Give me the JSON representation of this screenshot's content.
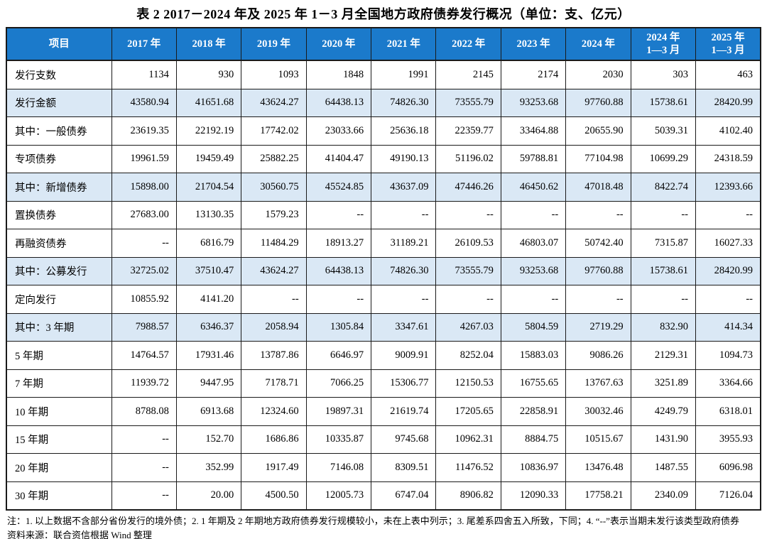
{
  "title": "表 2  2017－2024 年及 2025 年 1－3 月全国地方政府债券发行概况（单位：支、亿元）",
  "table": {
    "columns": [
      "项目",
      "2017 年",
      "2018 年",
      "2019 年",
      "2020 年",
      "2021 年",
      "2022 年",
      "2023 年",
      "2024 年",
      "2024 年\n1—3 月",
      "2025 年\n1—3 月"
    ],
    "rows": [
      {
        "label": "发行支数",
        "highlight": false,
        "values": [
          "1134",
          "930",
          "1093",
          "1848",
          "1991",
          "2145",
          "2174",
          "2030",
          "303",
          "463"
        ]
      },
      {
        "label": "发行金额",
        "highlight": true,
        "values": [
          "43580.94",
          "41651.68",
          "43624.27",
          "64438.13",
          "74826.30",
          "73555.79",
          "93253.68",
          "97760.88",
          "15738.61",
          "28420.99"
        ]
      },
      {
        "label": "其中：一般债券",
        "highlight": false,
        "values": [
          "23619.35",
          "22192.19",
          "17742.02",
          "23033.66",
          "25636.18",
          "22359.77",
          "33464.88",
          "20655.90",
          "5039.31",
          "4102.40"
        ]
      },
      {
        "label": "专项债券",
        "highlight": false,
        "values": [
          "19961.59",
          "19459.49",
          "25882.25",
          "41404.47",
          "49190.13",
          "51196.02",
          "59788.81",
          "77104.98",
          "10699.29",
          "24318.59"
        ]
      },
      {
        "label": "其中：新增债券",
        "highlight": true,
        "values": [
          "15898.00",
          "21704.54",
          "30560.75",
          "45524.85",
          "43637.09",
          "47446.26",
          "46450.62",
          "47018.48",
          "8422.74",
          "12393.66"
        ]
      },
      {
        "label": "置换债券",
        "highlight": false,
        "values": [
          "27683.00",
          "13130.35",
          "1579.23",
          "--",
          "--",
          "--",
          "--",
          "--",
          "--",
          "--"
        ]
      },
      {
        "label": "再融资债券",
        "highlight": false,
        "values": [
          "--",
          "6816.79",
          "11484.29",
          "18913.27",
          "31189.21",
          "26109.53",
          "46803.07",
          "50742.40",
          "7315.87",
          "16027.33"
        ]
      },
      {
        "label": "其中：公募发行",
        "highlight": true,
        "values": [
          "32725.02",
          "37510.47",
          "43624.27",
          "64438.13",
          "74826.30",
          "73555.79",
          "93253.68",
          "97760.88",
          "15738.61",
          "28420.99"
        ]
      },
      {
        "label": "定向发行",
        "highlight": false,
        "values": [
          "10855.92",
          "4141.20",
          "--",
          "--",
          "--",
          "--",
          "--",
          "--",
          "--",
          "--"
        ]
      },
      {
        "label": "其中：3 年期",
        "highlight": true,
        "values": [
          "7988.57",
          "6346.37",
          "2058.94",
          "1305.84",
          "3347.61",
          "4267.03",
          "5804.59",
          "2719.29",
          "832.90",
          "414.34"
        ]
      },
      {
        "label": "5 年期",
        "highlight": false,
        "values": [
          "14764.57",
          "17931.46",
          "13787.86",
          "6646.97",
          "9009.91",
          "8252.04",
          "15883.03",
          "9086.26",
          "2129.31",
          "1094.73"
        ]
      },
      {
        "label": "7 年期",
        "highlight": false,
        "values": [
          "11939.72",
          "9447.95",
          "7178.71",
          "7066.25",
          "15306.77",
          "12150.53",
          "16755.65",
          "13767.63",
          "3251.89",
          "3364.66"
        ]
      },
      {
        "label": "10 年期",
        "highlight": false,
        "values": [
          "8788.08",
          "6913.68",
          "12324.60",
          "19897.31",
          "21619.74",
          "17205.65",
          "22858.91",
          "30032.46",
          "4249.79",
          "6318.01"
        ]
      },
      {
        "label": "15 年期",
        "highlight": false,
        "values": [
          "--",
          "152.70",
          "1686.86",
          "10335.87",
          "9745.68",
          "10962.31",
          "8884.75",
          "10515.67",
          "1431.90",
          "3955.93"
        ]
      },
      {
        "label": "20 年期",
        "highlight": false,
        "values": [
          "--",
          "352.99",
          "1917.49",
          "7146.08",
          "8309.51",
          "11476.52",
          "10836.97",
          "13476.48",
          "1487.55",
          "6096.98"
        ]
      },
      {
        "label": "30 年期",
        "highlight": false,
        "values": [
          "--",
          "20.00",
          "4500.50",
          "12005.73",
          "6747.04",
          "8906.82",
          "12090.33",
          "17758.21",
          "2340.09",
          "7126.04"
        ]
      }
    ]
  },
  "notes": {
    "note": "注：1. 以上数据不含部分省份发行的境外债；2. 1 年期及 2 年期地方政府债券发行规模较小，未在上表中列示；3. 尾差系四舍五入所致，下同；4. “--”表示当期未发行该类型政府债券",
    "source": "资料来源：联合资信根据 Wind 整理"
  },
  "colors": {
    "header-bg": "#1B7ACB",
    "header-text": "#FFFFFF",
    "row-highlight": "#DAE8F5",
    "border": "#1A1A1A"
  }
}
